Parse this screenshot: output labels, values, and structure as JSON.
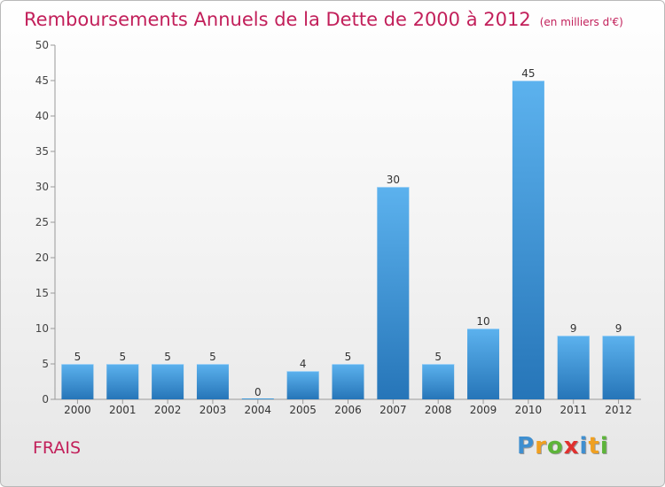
{
  "chart_data": {
    "type": "bar",
    "title": "Remboursements Annuels de la Dette de 2000 à 2012",
    "subtitle": "(en milliers d'€)",
    "categories": [
      "2000",
      "2001",
      "2002",
      "2003",
      "2004",
      "2005",
      "2006",
      "2007",
      "2008",
      "2009",
      "2010",
      "2011",
      "2012"
    ],
    "values": [
      5,
      5,
      5,
      5,
      0,
      4,
      5,
      30,
      5,
      10,
      45,
      9,
      9
    ],
    "ylim": [
      0,
      50
    ],
    "yticks": [
      0,
      5,
      10,
      15,
      20,
      25,
      30,
      35,
      40,
      45,
      50
    ],
    "grid": false,
    "bar_color": "#3d97d8",
    "bar_color_light": "#5cb2ee",
    "bar_color_dark": "#2675b8"
  },
  "footer": {
    "commune": "FRAIS",
    "logo_letters": [
      {
        "ch": "P",
        "color": "#3f8fd0"
      },
      {
        "ch": "r",
        "color": "#f0a021"
      },
      {
        "ch": "o",
        "color": "#5db43a"
      },
      {
        "ch": "x",
        "color": "#e0312f"
      },
      {
        "ch": "i",
        "color": "#3f8fd0"
      },
      {
        "ch": "t",
        "color": "#f0a021"
      },
      {
        "ch": "i",
        "color": "#5db43a"
      }
    ]
  }
}
